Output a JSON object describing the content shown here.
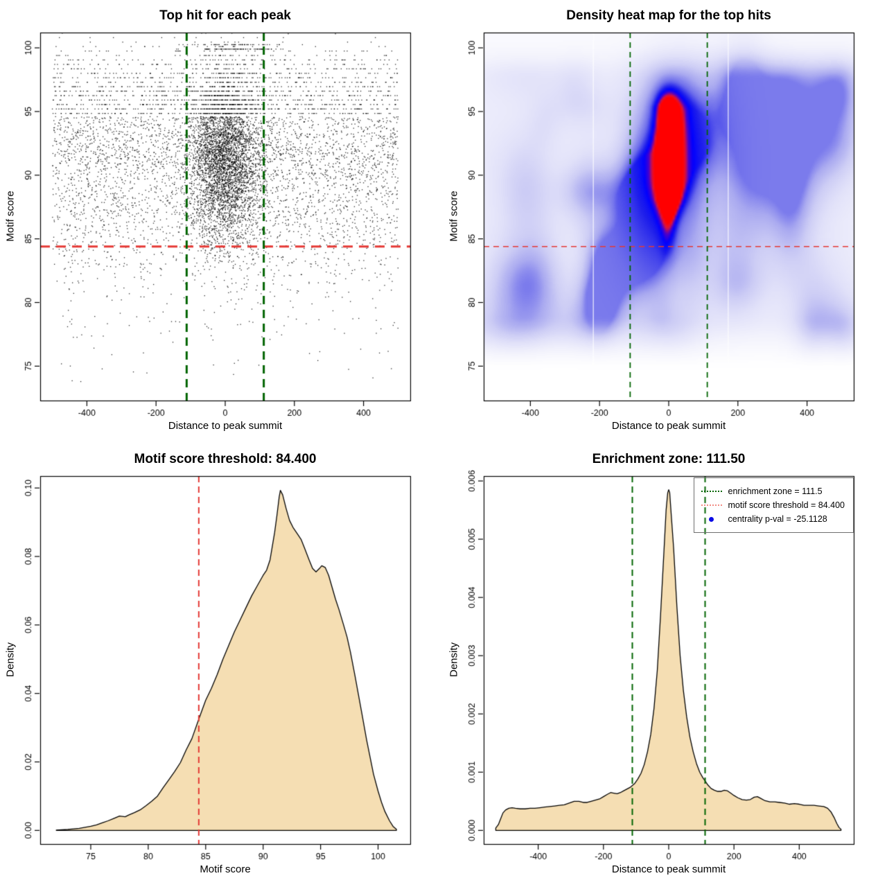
{
  "page": {
    "background": "#ffffff"
  },
  "style": {
    "point_color": "#000000",
    "red_line_color": "#e53935",
    "green_line_color": "#006400",
    "density_fill": "#f5deb3",
    "density_stroke": "#000000",
    "box_color": "#000000",
    "legend_red_sample": "#f28b82",
    "legend_blue_dot": "#0a0ae6"
  },
  "chart_data": [
    {
      "type": "scatter",
      "title": "Top hit for each peak",
      "xlabel": "Distance to peak summit",
      "ylabel": "Motif score",
      "xlim": [
        -535,
        535
      ],
      "ylim": [
        72.3,
        101.2
      ],
      "x_ticks": [
        -400,
        -200,
        0,
        200,
        400
      ],
      "y_ticks": [
        75,
        80,
        85,
        90,
        95,
        100
      ],
      "h_line": {
        "value": 84.4,
        "style": "dashed",
        "width": 3,
        "dash": [
          14,
          9
        ],
        "color_key": "red_line_color"
      },
      "v_lines": {
        "values": [
          -111.5,
          111.5
        ],
        "style": "dashed",
        "width": 3,
        "dash": [
          12,
          8
        ],
        "color_key": "green_line_color"
      },
      "points": {
        "n": 9000,
        "seed": 42,
        "x_uniform_frac": 0.55,
        "x_range": [
          -500,
          500
        ],
        "x_normal_sd": 52,
        "central_y_mean": 91.3,
        "central_y_sd": 3.3,
        "stripe_quantize_above": 94.6,
        "stripe_step": 0.35,
        "top_row_cluster": {
          "n": 130,
          "x_sd": 75,
          "rows": [
            99.9,
            100.25
          ]
        },
        "marginal_source": 2
      }
    },
    {
      "type": "heatmap",
      "title": "Density heat map for the top hits",
      "xlabel": "Distance to peak summit",
      "ylabel": "Motif score",
      "xlim": [
        -535,
        535
      ],
      "ylim": [
        72.3,
        101.2
      ],
      "x_ticks": [
        -400,
        -200,
        0,
        200,
        400
      ],
      "y_ticks": [
        75,
        80,
        85,
        90,
        95,
        100
      ],
      "h_line": {
        "value": 84.4,
        "style": "dashed",
        "width": 1.6,
        "dash": [
          8,
          6
        ],
        "color_key": "red_line_color"
      },
      "v_lines": {
        "values": [
          -111.5,
          111.5
        ],
        "style": "dashed",
        "width": 1.8,
        "dash": [
          8,
          6
        ],
        "color_key": "green_line_color"
      },
      "hotspot": {
        "x_center": 0,
        "x_sigma": 30,
        "y_profile": [
          [
            92,
            2.0,
            1.0
          ],
          [
            94.7,
            1.7,
            0.92
          ],
          [
            90,
            1.6,
            0.72
          ],
          [
            88.3,
            1.4,
            0.5
          ],
          [
            86.5,
            1.3,
            0.28
          ],
          [
            84.8,
            1.2,
            0.12
          ]
        ],
        "halo": {
          "x_sigma": 95,
          "y_center": 91,
          "y_sigma": 5.5,
          "amp": 0.25
        }
      },
      "background": {
        "seed": 7,
        "n_lumps": 80,
        "band_lo": [
          74.5,
          79
        ],
        "band_hi": [
          97.5,
          100.8
        ]
      },
      "white_artifact_lines_x": [
        -218,
        172
      ],
      "colormap": [
        [
          0.0,
          "#ffffff"
        ],
        [
          0.15,
          "#f2f2fc"
        ],
        [
          0.3,
          "#e1e1f9"
        ],
        [
          0.42,
          "#cdcdf5"
        ],
        [
          0.55,
          "#aaaaf0"
        ],
        [
          0.68,
          "#6e6eeb"
        ],
        [
          0.78,
          "#1e1eeb"
        ],
        [
          0.84,
          "#0000ff"
        ],
        [
          0.9,
          "#5000c8"
        ],
        [
          0.95,
          "#dc143c"
        ],
        [
          1.0,
          "#ff0000"
        ]
      ]
    },
    {
      "type": "area",
      "title": "Motif score threshold: 84.400",
      "xlabel": "Motif score",
      "ylabel": "Density",
      "xlim": [
        70.6,
        102.8
      ],
      "ylim": [
        -0.00398,
        0.10348
      ],
      "x_ticks": [
        75,
        80,
        85,
        90,
        95,
        100
      ],
      "y_ticks": [
        0,
        0.02,
        0.04,
        0.06,
        0.08,
        0.1
      ],
      "y_tick_labels": [
        "0.00",
        "0.02",
        "0.04",
        "0.06",
        "0.08",
        "0.10"
      ],
      "v_lines": {
        "values": [
          84.4
        ],
        "style": "dashed",
        "width": 2,
        "dash": [
          9,
          6
        ],
        "color_key": "red_line_color"
      },
      "curve": [
        [
          72,
          0.0001
        ],
        [
          73,
          0.0003
        ],
        [
          74,
          0.0006
        ],
        [
          75,
          0.0012
        ],
        [
          75.5,
          0.0016
        ],
        [
          76,
          0.0022
        ],
        [
          76.5,
          0.0028
        ],
        [
          77,
          0.0035
        ],
        [
          77.5,
          0.0042
        ],
        [
          78,
          0.004
        ],
        [
          78.3,
          0.0045
        ],
        [
          78.8,
          0.0052
        ],
        [
          79.3,
          0.006
        ],
        [
          79.8,
          0.0072
        ],
        [
          80.3,
          0.0085
        ],
        [
          80.8,
          0.01
        ],
        [
          81.3,
          0.0125
        ],
        [
          81.8,
          0.0148
        ],
        [
          82.3,
          0.0172
        ],
        [
          82.8,
          0.0198
        ],
        [
          83.3,
          0.0235
        ],
        [
          83.8,
          0.0268
        ],
        [
          84.4,
          0.0325
        ],
        [
          85,
          0.038
        ],
        [
          85.5,
          0.0415
        ],
        [
          86,
          0.0455
        ],
        [
          86.5,
          0.05
        ],
        [
          87,
          0.054
        ],
        [
          87.5,
          0.058
        ],
        [
          88,
          0.0615
        ],
        [
          88.5,
          0.065
        ],
        [
          89,
          0.0685
        ],
        [
          89.5,
          0.0715
        ],
        [
          90,
          0.0745
        ],
        [
          90.3,
          0.076
        ],
        [
          90.6,
          0.079
        ],
        [
          91,
          0.087
        ],
        [
          91.2,
          0.092
        ],
        [
          91.4,
          0.0975
        ],
        [
          91.5,
          0.0993
        ],
        [
          91.7,
          0.098
        ],
        [
          92,
          0.094
        ],
        [
          92.3,
          0.0905
        ],
        [
          92.6,
          0.0885
        ],
        [
          93,
          0.0865
        ],
        [
          93.3,
          0.085
        ],
        [
          93.6,
          0.0825
        ],
        [
          94,
          0.079
        ],
        [
          94.3,
          0.0765
        ],
        [
          94.6,
          0.0755
        ],
        [
          94.9,
          0.0765
        ],
        [
          95.1,
          0.0773
        ],
        [
          95.4,
          0.0768
        ],
        [
          95.7,
          0.0745
        ],
        [
          96,
          0.071
        ],
        [
          96.3,
          0.0675
        ],
        [
          96.6,
          0.0645
        ],
        [
          97,
          0.06
        ],
        [
          97.3,
          0.0565
        ],
        [
          97.6,
          0.052
        ],
        [
          98,
          0.045
        ],
        [
          98.3,
          0.0395
        ],
        [
          98.6,
          0.034
        ],
        [
          99,
          0.0265
        ],
        [
          99.3,
          0.0215
        ],
        [
          99.6,
          0.0165
        ],
        [
          100,
          0.0115
        ],
        [
          100.3,
          0.0082
        ],
        [
          100.6,
          0.0055
        ],
        [
          101,
          0.0028
        ],
        [
          101.3,
          0.0012
        ],
        [
          101.6,
          0.0003
        ]
      ]
    },
    {
      "type": "area",
      "title": "Enrichment zone: 111.50",
      "xlabel": "Distance to peak summit",
      "ylabel": "Density",
      "xlim": [
        -567,
        567
      ],
      "ylim": [
        -0.000234,
        0.006084
      ],
      "x_ticks": [
        -400,
        -200,
        0,
        200,
        400
      ],
      "y_ticks": [
        0,
        0.001,
        0.002,
        0.003,
        0.004,
        0.005,
        0.006
      ],
      "y_tick_labels": [
        "0.000",
        "0.001",
        "0.002",
        "0.003",
        "0.004",
        "0.005",
        "0.006"
      ],
      "v_lines": {
        "values": [
          -111.5,
          111.5
        ],
        "style": "dashed",
        "width": 2,
        "dash": [
          9,
          6
        ],
        "color_key": "green_line_color"
      },
      "curve": [
        [
          -530,
          4e-05
        ],
        [
          -522,
          0.0001
        ],
        [
          -515,
          0.0002
        ],
        [
          -508,
          0.0003
        ],
        [
          -500,
          0.00035
        ],
        [
          -490,
          0.00038
        ],
        [
          -480,
          0.00039
        ],
        [
          -470,
          0.00038
        ],
        [
          -455,
          0.00037
        ],
        [
          -440,
          0.00037
        ],
        [
          -425,
          0.00038
        ],
        [
          -410,
          0.00038
        ],
        [
          -395,
          0.00039
        ],
        [
          -380,
          0.0004
        ],
        [
          -365,
          0.00041
        ],
        [
          -350,
          0.00042
        ],
        [
          -335,
          0.00043
        ],
        [
          -320,
          0.00044
        ],
        [
          -305,
          0.00047
        ],
        [
          -290,
          0.0005
        ],
        [
          -275,
          0.0005
        ],
        [
          -262,
          0.00048
        ],
        [
          -250,
          0.00048
        ],
        [
          -238,
          0.0005
        ],
        [
          -225,
          0.00052
        ],
        [
          -212,
          0.00054
        ],
        [
          -200,
          0.00058
        ],
        [
          -188,
          0.00062
        ],
        [
          -178,
          0.00065
        ],
        [
          -168,
          0.00064
        ],
        [
          -158,
          0.00063
        ],
        [
          -148,
          0.00065
        ],
        [
          -138,
          0.00068
        ],
        [
          -128,
          0.00071
        ],
        [
          -118,
          0.00074
        ],
        [
          -111.5,
          0.00077
        ],
        [
          -105,
          0.0008
        ],
        [
          -95,
          0.00088
        ],
        [
          -85,
          0.00098
        ],
        [
          -75,
          0.00113
        ],
        [
          -65,
          0.00135
        ],
        [
          -55,
          0.00165
        ],
        [
          -45,
          0.0021
        ],
        [
          -35,
          0.00275
        ],
        [
          -25,
          0.0037
        ],
        [
          -15,
          0.00475
        ],
        [
          -8,
          0.0055
        ],
        [
          -3,
          0.0058
        ],
        [
          0,
          0.00585
        ],
        [
          3,
          0.0058
        ],
        [
          8,
          0.0054
        ],
        [
          15,
          0.00485
        ],
        [
          25,
          0.00385
        ],
        [
          35,
          0.003
        ],
        [
          45,
          0.0024
        ],
        [
          55,
          0.00195
        ],
        [
          65,
          0.0016
        ],
        [
          75,
          0.00135
        ],
        [
          85,
          0.00115
        ],
        [
          95,
          0.001
        ],
        [
          105,
          0.0009
        ],
        [
          111.5,
          0.00085
        ],
        [
          120,
          0.00078
        ],
        [
          130,
          0.00072
        ],
        [
          140,
          0.00069
        ],
        [
          150,
          0.00067
        ],
        [
          160,
          0.00067
        ],
        [
          170,
          0.00069
        ],
        [
          180,
          0.00068
        ],
        [
          190,
          0.00064
        ],
        [
          200,
          0.0006
        ],
        [
          212,
          0.00056
        ],
        [
          225,
          0.00053
        ],
        [
          238,
          0.00052
        ],
        [
          250,
          0.00053
        ],
        [
          262,
          0.00057
        ],
        [
          272,
          0.00058
        ],
        [
          282,
          0.00055
        ],
        [
          295,
          0.00051
        ],
        [
          310,
          0.00049
        ],
        [
          325,
          0.00049
        ],
        [
          340,
          0.00048
        ],
        [
          355,
          0.00047
        ],
        [
          370,
          0.00045
        ],
        [
          385,
          0.00046
        ],
        [
          400,
          0.00045
        ],
        [
          415,
          0.00043
        ],
        [
          430,
          0.00043
        ],
        [
          445,
          0.00043
        ],
        [
          460,
          0.00042
        ],
        [
          475,
          0.00041
        ],
        [
          487,
          0.00038
        ],
        [
          497,
          0.00032
        ],
        [
          507,
          0.00022
        ],
        [
          515,
          0.00012
        ],
        [
          522,
          5e-05
        ],
        [
          528,
          2e-05
        ]
      ],
      "legend": {
        "entries": [
          {
            "marker": "green-dotted-line",
            "label": "enrichment zone = 111.5"
          },
          {
            "marker": "red-dotted-line",
            "label": "motif score threshold = 84.400"
          },
          {
            "marker": "blue-dot",
            "label": "centrality p-val = -25.1128"
          }
        ]
      }
    }
  ]
}
